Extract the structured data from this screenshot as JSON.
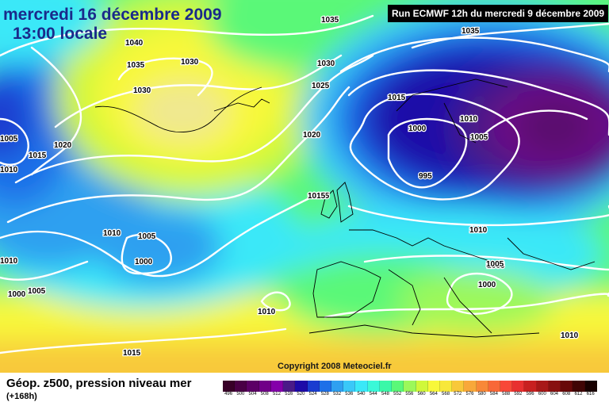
{
  "header": {
    "date": "mercredi 16 décembre 2009",
    "local_time": "13:00 locale",
    "run": "Run ECMWF 12h du mercredi 9 décembre 2009"
  },
  "footer": {
    "title": "Géop. z500, pression niveau mer",
    "lead": "(+168h)",
    "copyright": "Copyright 2008 Meteociel.fr"
  },
  "legend": {
    "values": [
      "496",
      "500",
      "504",
      "508",
      "512",
      "516",
      "520",
      "524",
      "528",
      "532",
      "536",
      "540",
      "544",
      "548",
      "552",
      "556",
      "560",
      "564",
      "568",
      "572",
      "576",
      "580",
      "584",
      "588",
      "592",
      "596",
      "600",
      "604",
      "608",
      "612",
      "616"
    ],
    "colors": [
      "#380028",
      "#4a0046",
      "#5c0066",
      "#700088",
      "#8400aa",
      "#4a1a88",
      "#1e0aa8",
      "#1a3cd0",
      "#1e70e8",
      "#2fa0f0",
      "#3ac8f8",
      "#3ae8f8",
      "#3af8d8",
      "#3af8a8",
      "#5af878",
      "#9cf85a",
      "#d0f83a",
      "#f8f83a",
      "#f8e83a",
      "#f8c83a",
      "#f8a83a",
      "#f88838",
      "#f86838",
      "#f84838",
      "#e83030",
      "#c82020",
      "#a81818",
      "#881010",
      "#680808",
      "#400404",
      "#180000"
    ]
  },
  "isobar_labels": [
    "1035",
    "1040",
    "1035",
    "1030",
    "1030",
    "1030",
    "1025",
    "1020",
    "1015",
    "1020",
    "1005",
    "1015",
    "1010",
    "1010",
    "1005",
    "1000",
    "1005",
    "1010",
    "1000",
    "1010",
    "1000",
    "1005",
    "1010",
    "1005",
    "1015",
    "1015",
    "995",
    "1010",
    "1005",
    "1000",
    "1010",
    "1015",
    "1035"
  ],
  "surface_colors": {
    "deep_low": "#5a0a6e",
    "low": "#1e22c8",
    "mid": "#3ab8f8",
    "green": "#5af878",
    "high": "#f8f83a",
    "ridge": "#f0e890"
  }
}
